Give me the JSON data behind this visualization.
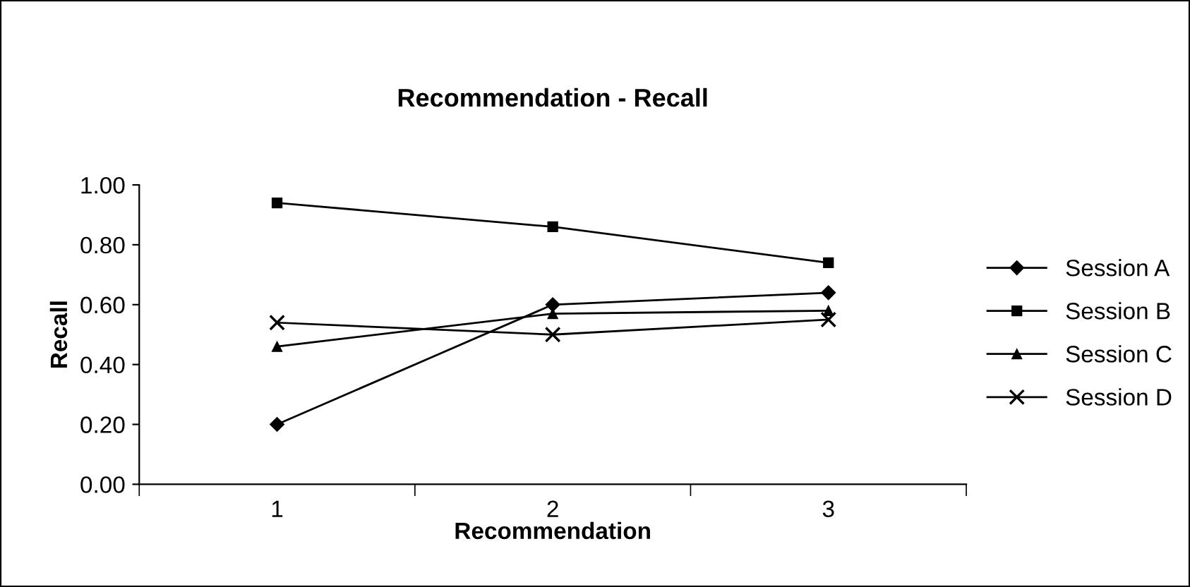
{
  "chart_data": {
    "type": "line",
    "title": "Recommendation - Recall",
    "xlabel": "Recommendation",
    "ylabel": "Recall",
    "categories": [
      "1",
      "2",
      "3"
    ],
    "series": [
      {
        "name": "Session A",
        "color": "#000000",
        "marker": "diamond",
        "values": [
          0.2,
          0.6,
          0.64
        ]
      },
      {
        "name": "Session B",
        "color": "#000000",
        "marker": "square",
        "values": [
          0.94,
          0.86,
          0.74
        ]
      },
      {
        "name": "Session C",
        "color": "#000000",
        "marker": "triangle",
        "values": [
          0.46,
          0.57,
          0.58
        ]
      },
      {
        "name": "Session D",
        "color": "#000000",
        "marker": "cross",
        "values": [
          0.54,
          0.5,
          0.55
        ]
      }
    ],
    "ylim": [
      0,
      1
    ],
    "yticks": [
      {
        "value": 0,
        "label": "0.00"
      },
      {
        "value": 0.2,
        "label": "0.20"
      },
      {
        "value": 0.4,
        "label": "0.40"
      },
      {
        "value": 0.6,
        "label": "0.60"
      },
      {
        "value": 0.8,
        "label": "0.80"
      },
      {
        "value": 1,
        "label": "1.00"
      }
    ],
    "grid": false,
    "legend": "right",
    "line_style": "solid"
  }
}
